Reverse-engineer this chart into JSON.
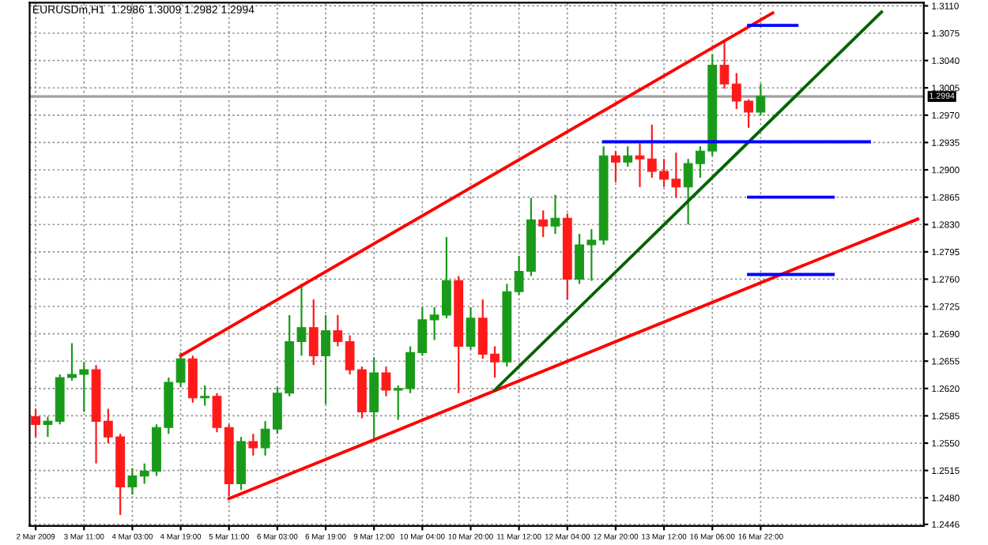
{
  "chart_data": {
    "type": "candlestick",
    "title": "EURUSDm,H1  1.2986 1.3009 1.2982 1.2994",
    "categories": [
      "2 Mar 2009",
      null,
      null,
      null,
      "3 Mar 11:00",
      null,
      null,
      null,
      "4 Mar 03:00",
      null,
      null,
      null,
      "4 Mar 19:00",
      null,
      null,
      null,
      "5 Mar 11:00",
      null,
      null,
      null,
      "6 Mar 03:00",
      null,
      null,
      null,
      "6 Mar 19:00",
      null,
      null,
      null,
      "9 Mar 12:00",
      null,
      null,
      null,
      "10 Mar 04:00",
      null,
      null,
      null,
      "10 Mar 20:00",
      null,
      null,
      null,
      "11 Mar 12:00",
      null,
      null,
      null,
      "12 Mar 04:00",
      null,
      null,
      null,
      "12 Mar 20:00",
      null,
      null,
      null,
      "13 Mar 12:00",
      null,
      null,
      null,
      "16 Mar 06:00",
      null,
      null,
      null,
      "16 Mar 22:00",
      null,
      null,
      null,
      null,
      null,
      null,
      null,
      null,
      null,
      null,
      null,
      null,
      null
    ],
    "ohlc": [
      [
        1.2584,
        1.2594,
        1.2558,
        1.2574
      ],
      [
        1.2574,
        1.2584,
        1.2558,
        1.2578
      ],
      [
        1.2578,
        1.2638,
        1.2574,
        1.2634
      ],
      [
        1.2634,
        1.2678,
        1.263,
        1.2638
      ],
      [
        1.2638,
        1.2654,
        1.259,
        1.2644
      ],
      [
        1.2644,
        1.265,
        1.2524,
        1.2578
      ],
      [
        1.2578,
        1.2594,
        1.255,
        1.2558
      ],
      [
        1.2558,
        1.2562,
        1.2458,
        1.2494
      ],
      [
        1.2494,
        1.2518,
        1.2484,
        1.2508
      ],
      [
        1.2508,
        1.2524,
        1.2498,
        1.2514
      ],
      [
        1.2514,
        1.2574,
        1.2508,
        1.257
      ],
      [
        1.257,
        1.2634,
        1.2562,
        1.2628
      ],
      [
        1.2628,
        1.2666,
        1.2622,
        1.2658
      ],
      [
        1.2658,
        1.2662,
        1.2602,
        1.2608
      ],
      [
        1.2608,
        1.2624,
        1.2598,
        1.261
      ],
      [
        1.261,
        1.2614,
        1.2564,
        1.257
      ],
      [
        1.257,
        1.2574,
        1.2482,
        1.2498
      ],
      [
        1.2498,
        1.2558,
        1.249,
        1.2552
      ],
      [
        1.2552,
        1.2562,
        1.2534,
        1.2544
      ],
      [
        1.2544,
        1.2578,
        1.2534,
        1.2568
      ],
      [
        1.2568,
        1.2622,
        1.2562,
        1.2614
      ],
      [
        1.2614,
        1.2714,
        1.261,
        1.268
      ],
      [
        1.268,
        1.2754,
        1.2662,
        1.2698
      ],
      [
        1.2698,
        1.2734,
        1.265,
        1.2662
      ],
      [
        1.2662,
        1.2714,
        1.26,
        1.2694
      ],
      [
        1.2694,
        1.2714,
        1.2674,
        1.268
      ],
      [
        1.268,
        1.2688,
        1.2638,
        1.2644
      ],
      [
        1.2644,
        1.2648,
        1.2582,
        1.259
      ],
      [
        1.259,
        1.266,
        1.2556,
        1.264
      ],
      [
        1.264,
        1.2648,
        1.261,
        1.2618
      ],
      [
        1.2618,
        1.2624,
        1.258,
        1.262
      ],
      [
        1.262,
        1.2674,
        1.2614,
        1.2666
      ],
      [
        1.2666,
        1.2724,
        1.2662,
        1.2708
      ],
      [
        1.2708,
        1.2724,
        1.2682,
        1.2714
      ],
      [
        1.2714,
        1.2814,
        1.271,
        1.2758
      ],
      [
        1.2758,
        1.2764,
        1.2614,
        1.2674
      ],
      [
        1.2674,
        1.2724,
        1.267,
        1.271
      ],
      [
        1.271,
        1.2734,
        1.2658,
        1.2664
      ],
      [
        1.2664,
        1.2674,
        1.2634,
        1.2654
      ],
      [
        1.2654,
        1.2754,
        1.2648,
        1.2744
      ],
      [
        1.2744,
        1.279,
        1.274,
        1.277
      ],
      [
        1.277,
        1.2864,
        1.2764,
        1.2836
      ],
      [
        1.2836,
        1.2848,
        1.2814,
        1.2828
      ],
      [
        1.2828,
        1.2868,
        1.2818,
        1.2838
      ],
      [
        1.2838,
        1.2844,
        1.2734,
        1.276
      ],
      [
        1.276,
        1.2818,
        1.2754,
        1.2804
      ],
      [
        1.2804,
        1.2824,
        1.2758,
        1.281
      ],
      [
        1.281,
        1.293,
        1.2804,
        1.2918
      ],
      [
        1.2918,
        1.2924,
        1.2884,
        1.291
      ],
      [
        1.291,
        1.293,
        1.2904,
        1.2918
      ],
      [
        1.2918,
        1.2934,
        1.2878,
        1.2914
      ],
      [
        1.2914,
        1.2958,
        1.289,
        1.2898
      ],
      [
        1.2898,
        1.2914,
        1.2878,
        1.2888
      ],
      [
        1.2888,
        1.2922,
        1.2864,
        1.2878
      ],
      [
        1.2878,
        1.2914,
        1.283,
        1.2908
      ],
      [
        1.2908,
        1.293,
        1.289,
        1.2924
      ],
      [
        1.2924,
        1.3048,
        1.2918,
        1.3034
      ],
      [
        1.3034,
        1.3064,
        1.3004,
        1.301
      ],
      [
        1.301,
        1.3024,
        1.2978,
        1.2988
      ],
      [
        1.2988,
        1.299,
        1.2954,
        1.2974
      ],
      [
        1.2974,
        1.301,
        1.297,
        1.2994
      ],
      null,
      null,
      null,
      null,
      null,
      null,
      null,
      null,
      null,
      null,
      null,
      null,
      null
    ],
    "series": [
      {
        "type": "line",
        "color": "#ff0000",
        "values": [
          null,
          null,
          null,
          null,
          null,
          null,
          null,
          null,
          null,
          null,
          null,
          null,
          1.2662,
          null,
          null,
          null,
          null,
          null,
          null,
          null,
          null,
          null,
          null,
          null,
          null,
          null,
          null,
          null,
          null,
          null,
          null,
          null,
          null,
          null,
          null,
          null,
          null,
          null,
          null,
          null,
          null,
          null,
          null,
          null,
          null,
          null,
          null,
          null,
          null,
          null,
          null,
          null,
          null,
          null,
          null,
          null,
          null,
          null,
          null,
          null,
          null,
          1.3101,
          null,
          null,
          null,
          null,
          null,
          null,
          null,
          null,
          null,
          null,
          null,
          null
        ]
      },
      {
        "type": "line",
        "color": "#ff0000",
        "values": [
          null,
          null,
          null,
          null,
          null,
          null,
          null,
          null,
          null,
          null,
          null,
          null,
          null,
          null,
          null,
          null,
          1.2479,
          null,
          null,
          null,
          null,
          null,
          null,
          null,
          null,
          null,
          null,
          null,
          null,
          null,
          null,
          null,
          null,
          null,
          null,
          null,
          null,
          null,
          null,
          null,
          null,
          null,
          null,
          null,
          null,
          null,
          null,
          null,
          null,
          null,
          null,
          null,
          null,
          null,
          null,
          null,
          null,
          null,
          null,
          null,
          null,
          null,
          null,
          null,
          null,
          null,
          null,
          null,
          null,
          null,
          null,
          null,
          null,
          1.2837
        ]
      },
      {
        "type": "line",
        "color": "#006400",
        "values": [
          null,
          null,
          null,
          null,
          null,
          null,
          null,
          null,
          null,
          null,
          null,
          null,
          null,
          null,
          null,
          null,
          null,
          null,
          null,
          null,
          null,
          null,
          null,
          null,
          null,
          null,
          null,
          null,
          null,
          null,
          null,
          null,
          null,
          null,
          null,
          null,
          null,
          null,
          1.2618,
          null,
          null,
          null,
          null,
          null,
          null,
          null,
          null,
          null,
          null,
          null,
          null,
          null,
          null,
          null,
          null,
          null,
          null,
          null,
          null,
          null,
          null,
          null,
          null,
          null,
          null,
          null,
          null,
          null,
          null,
          null,
          1.3102,
          null,
          null,
          null
        ]
      },
      {
        "type": "line",
        "color": "#0000ff",
        "values": [
          null,
          null,
          null,
          null,
          null,
          null,
          null,
          null,
          null,
          null,
          null,
          null,
          null,
          null,
          null,
          null,
          null,
          null,
          null,
          null,
          null,
          null,
          null,
          null,
          null,
          null,
          null,
          null,
          null,
          null,
          null,
          null,
          null,
          null,
          null,
          null,
          null,
          null,
          null,
          null,
          null,
          null,
          null,
          null,
          null,
          null,
          null,
          null,
          null,
          null,
          null,
          null,
          null,
          null,
          null,
          null,
          null,
          null,
          null,
          1.3085,
          null,
          null,
          null,
          1.3085,
          null,
          null,
          null,
          null,
          null,
          null,
          null,
          null,
          null,
          null
        ]
      },
      {
        "type": "line",
        "color": "#0000ff",
        "values": [
          null,
          null,
          null,
          null,
          null,
          null,
          null,
          null,
          null,
          null,
          null,
          null,
          null,
          null,
          null,
          null,
          null,
          null,
          null,
          null,
          null,
          null,
          null,
          null,
          null,
          null,
          null,
          null,
          null,
          null,
          null,
          null,
          null,
          null,
          null,
          null,
          null,
          null,
          null,
          null,
          null,
          null,
          null,
          null,
          null,
          null,
          null,
          1.2936,
          null,
          null,
          null,
          null,
          null,
          null,
          null,
          null,
          null,
          null,
          null,
          null,
          null,
          null,
          null,
          null,
          null,
          null,
          null,
          null,
          null,
          1.2936,
          null,
          null,
          null,
          null
        ]
      },
      {
        "type": "line",
        "color": "#0000ff",
        "values": [
          null,
          null,
          null,
          null,
          null,
          null,
          null,
          null,
          null,
          null,
          null,
          null,
          null,
          null,
          null,
          null,
          null,
          null,
          null,
          null,
          null,
          null,
          null,
          null,
          null,
          null,
          null,
          null,
          null,
          null,
          null,
          null,
          null,
          null,
          null,
          null,
          null,
          null,
          null,
          null,
          null,
          null,
          null,
          null,
          null,
          null,
          null,
          null,
          null,
          null,
          null,
          null,
          null,
          null,
          null,
          null,
          null,
          null,
          null,
          1.2865,
          null,
          null,
          null,
          null,
          null,
          null,
          1.2865,
          null,
          null,
          null,
          null,
          null,
          null,
          null
        ]
      },
      {
        "type": "line",
        "color": "#0000ff",
        "values": [
          null,
          null,
          null,
          null,
          null,
          null,
          null,
          null,
          null,
          null,
          null,
          null,
          null,
          null,
          null,
          null,
          null,
          null,
          null,
          null,
          null,
          null,
          null,
          null,
          null,
          null,
          null,
          null,
          null,
          null,
          null,
          null,
          null,
          null,
          null,
          null,
          null,
          null,
          null,
          null,
          null,
          null,
          null,
          null,
          null,
          null,
          null,
          null,
          null,
          null,
          null,
          null,
          null,
          null,
          null,
          null,
          null,
          null,
          null,
          1.2766,
          null,
          null,
          null,
          null,
          null,
          null,
          1.2766,
          null,
          null,
          null,
          null,
          null,
          null,
          null
        ]
      }
    ],
    "ref_lines": [
      {
        "axis": "y",
        "value": 1.2994,
        "label": "1.2994",
        "color": "#a0a0a0"
      }
    ],
    "ylim": [
      1.2444,
      1.3114
    ],
    "yticks": [
      {
        "value": 1.311,
        "label": "1.3110"
      },
      1.3075,
      {
        "value": 1.304,
        "label": "1.3040"
      },
      1.3005,
      {
        "value": 1.297,
        "label": "1.2970"
      },
      1.2935,
      {
        "value": 1.29,
        "label": "1.2900"
      },
      1.2865,
      {
        "value": 1.283,
        "label": "1.2830"
      },
      1.2795,
      {
        "value": 1.276,
        "label": "1.2760"
      },
      1.2725,
      {
        "value": 1.269,
        "label": "1.2690"
      },
      1.2655,
      {
        "value": 1.262,
        "label": "1.2620"
      },
      1.2585,
      {
        "value": 1.255,
        "label": "1.2550"
      },
      1.2515,
      {
        "value": 1.248,
        "label": "1.2480"
      },
      1.2446
    ],
    "grid": true
  }
}
